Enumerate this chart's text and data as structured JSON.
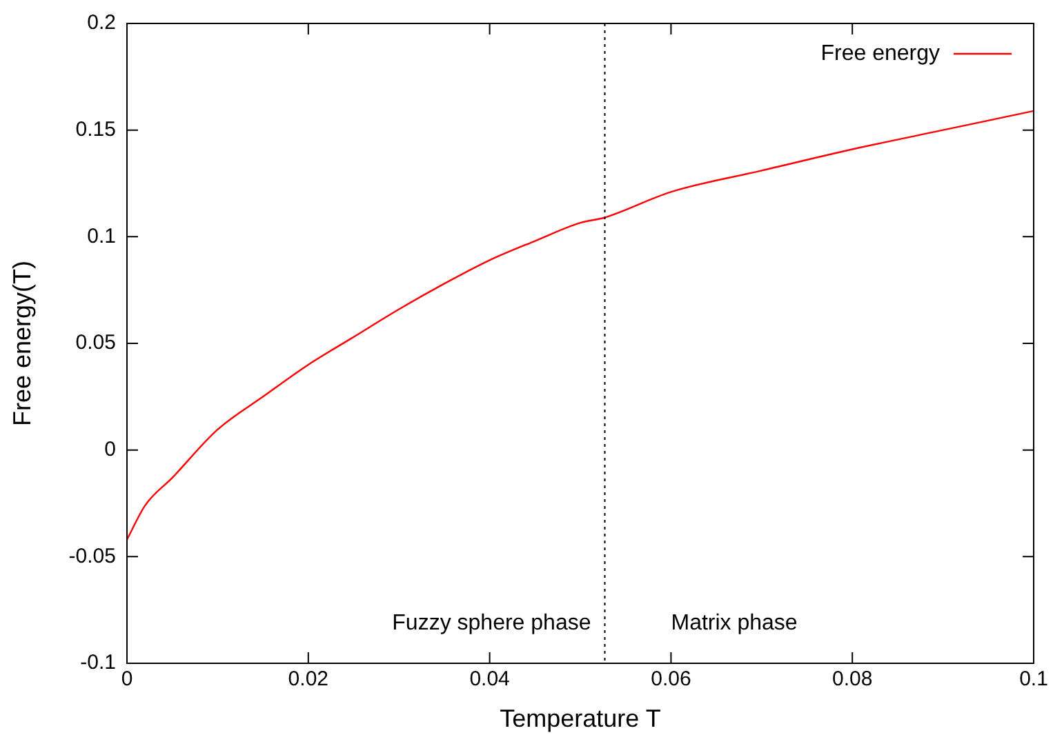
{
  "chart_data": {
    "type": "line",
    "xlabel": "Temperature T",
    "ylabel": "Free energy(T)",
    "xlim": [
      0,
      0.1
    ],
    "xticks": [
      0,
      0.02,
      0.04,
      0.06,
      0.08,
      0.1
    ],
    "ylim": [
      -0.1,
      0.2
    ],
    "yticks": [
      -0.1,
      -0.05,
      0,
      0.05,
      0.1,
      0.15,
      0.2
    ],
    "series": [
      {
        "name": "Free energy",
        "color": "#ff0000",
        "x": [
          0,
          0.002,
          0.005,
          0.01,
          0.015,
          0.02,
          0.025,
          0.03,
          0.035,
          0.04,
          0.045,
          0.05,
          0.0527,
          0.06,
          0.07,
          0.08,
          0.09,
          0.1
        ],
        "values": [
          -0.042,
          -0.026,
          -0.013,
          0.0096,
          0.025,
          0.04,
          0.053,
          0.066,
          0.078,
          0.089,
          0.098,
          0.1065,
          0.109,
          0.121,
          0.131,
          0.141,
          0.15,
          0.159
        ]
      }
    ],
    "ref_lines": [
      {
        "axis": "x",
        "value": 0.0527,
        "color": "#000000",
        "line_style": "dotted"
      }
    ],
    "annotations": [
      "Fuzzy sphere phase",
      "Matrix phase"
    ],
    "grid": false,
    "legend": "top right",
    "marker": "none",
    "line_style": "solid"
  }
}
